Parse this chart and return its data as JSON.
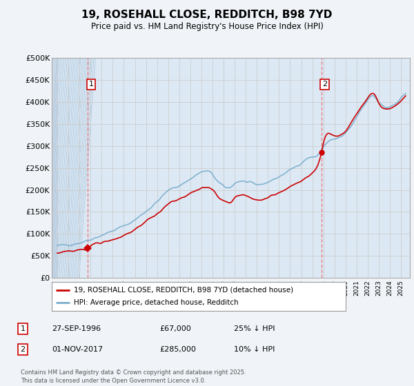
{
  "title": "19, ROSEHALL CLOSE, REDDITCH, B98 7YD",
  "subtitle": "Price paid vs. HM Land Registry's House Price Index (HPI)",
  "legend_line1": "19, ROSEHALL CLOSE, REDDITCH, B98 7YD (detached house)",
  "legend_line2": "HPI: Average price, detached house, Redditch",
  "annotation1_label": "1",
  "annotation1_date": "27-SEP-1996",
  "annotation1_price": "£67,000",
  "annotation1_hpi": "25% ↓ HPI",
  "annotation2_label": "2",
  "annotation2_date": "01-NOV-2017",
  "annotation2_price": "£285,000",
  "annotation2_hpi": "10% ↓ HPI",
  "footer": "Contains HM Land Registry data © Crown copyright and database right 2025.\nThis data is licensed under the Open Government Licence v3.0.",
  "sale_color": "#cc0000",
  "hpi_color": "#7aadcc",
  "background_color": "#f0f4f8",
  "plot_bg_color": "#dce9f5",
  "grid_color": "#aaaaaa",
  "hatch_bg_color": "#c8d8e8",
  "ylim": [
    0,
    500000
  ],
  "yticks": [
    0,
    50000,
    100000,
    150000,
    200000,
    250000,
    300000,
    350000,
    400000,
    450000,
    500000
  ],
  "ytick_labels": [
    "£0",
    "£50K",
    "£100K",
    "£150K",
    "£200K",
    "£250K",
    "£300K",
    "£350K",
    "£400K",
    "£450K",
    "£500K"
  ],
  "sale1_x": 1996.75,
  "sale1_y": 67000,
  "sale2_x": 2017.83,
  "sale2_y": 285000,
  "vline1_x": 1996.75,
  "vline2_x": 2017.83,
  "xmin": 1993.5,
  "xmax": 2025.8,
  "xtick_start": 1994,
  "xtick_end": 2025
}
